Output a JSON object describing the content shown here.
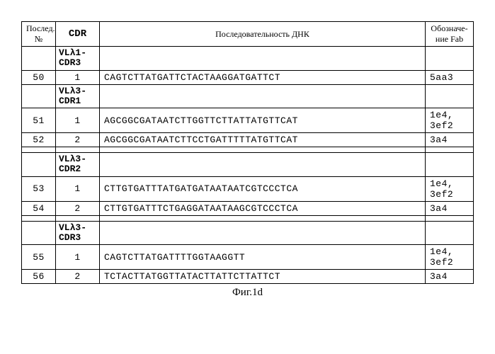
{
  "table": {
    "headers": {
      "num": "Послед. №",
      "cdr": "CDR",
      "seq": "Последовательность ДНК",
      "fab": "Обозначе-\nние Fab"
    },
    "groups": [
      {
        "label": "VLλ1-\nCDR3",
        "rows": [
          {
            "num": "50",
            "cdr": "1",
            "seq": "CAGTCTTATGATTCTACTAAGGATGATTCT",
            "fab": "5aa3"
          }
        ]
      },
      {
        "label": "VLλ3-\nCDR1",
        "rows": [
          {
            "num": "51",
            "cdr": "1",
            "seq": "AGCGGCGATAATCTTGGTTCTTATTATGTTCAT",
            "fab": "1e4,\n3ef2"
          },
          {
            "num": "52",
            "cdr": "2",
            "seq": "AGCGGCGATAATCTTCCTGATTTTTATGTTCAT",
            "fab": "3a4"
          }
        ]
      },
      {
        "label": "VLλ3-\nCDR2",
        "rows": [
          {
            "num": "53",
            "cdr": "1",
            "seq": "CTTGTGATTTATGATGATAATAATCGTCCCTCA",
            "fab": "1e4,\n3ef2"
          },
          {
            "num": "54",
            "cdr": "2",
            "seq": "CTTGTGATTTCTGAGGATAATAAGCGTCCCTCA",
            "fab": "3a4"
          }
        ]
      },
      {
        "label": "VLλ3-\nCDR3",
        "rows": [
          {
            "num": "55",
            "cdr": "1",
            "seq": "CAGTCTTATGATTTTGGTAAGGTT",
            "fab": "1e4,\n3ef2"
          },
          {
            "num": "56",
            "cdr": "2",
            "seq": "TCTACTTATGGTTATACTTATTCTTATTCT",
            "fab": "3a4"
          }
        ]
      }
    ]
  },
  "caption": "Фиг.1d",
  "hasSpacersBefore": [
    false,
    false,
    true,
    true
  ]
}
